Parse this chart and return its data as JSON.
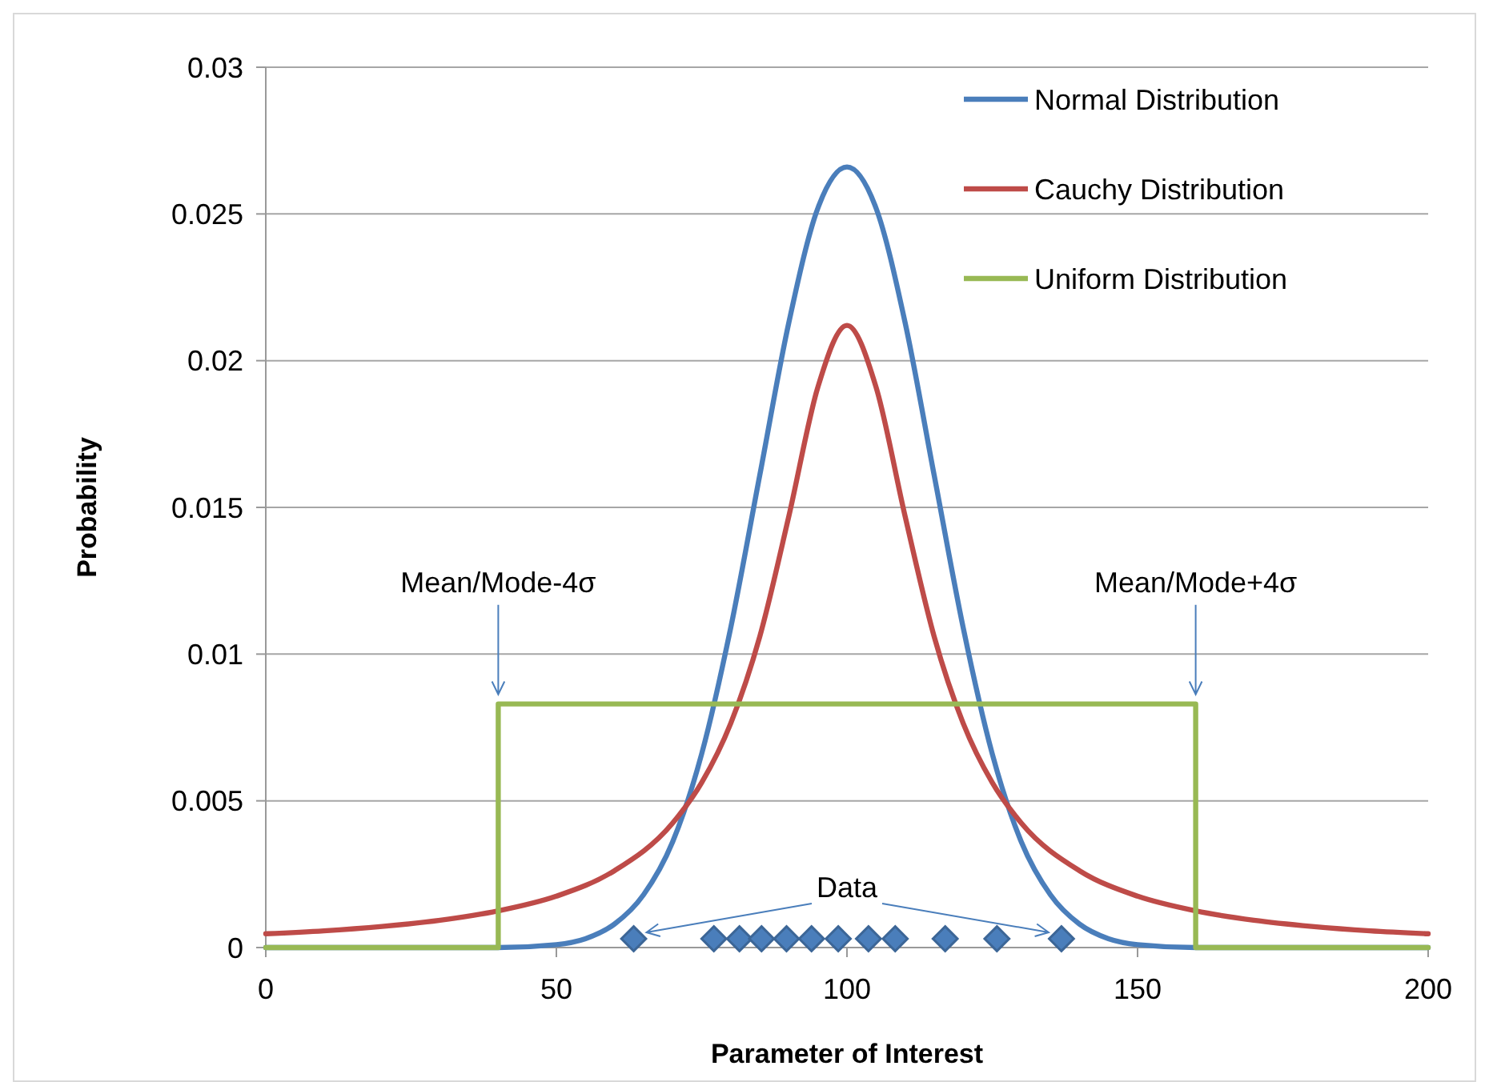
{
  "chart_data": {
    "type": "line",
    "xlabel": "Parameter of Interest",
    "ylabel": "Probability",
    "xlim": [
      0,
      200
    ],
    "xticks": [
      0,
      50,
      100,
      150,
      200
    ],
    "ylim": [
      0,
      0.03
    ],
    "yticks": [
      0,
      0.005,
      0.01,
      0.015,
      0.02,
      0.025,
      0.03
    ],
    "grid": "y",
    "legend": "top right",
    "line_style": "solid",
    "series": [
      {
        "name": "Normal Distribution",
        "color": "#4a7ebb",
        "x": [
          0,
          40,
          50,
          55,
          60,
          65,
          70,
          75,
          80,
          85,
          90,
          95,
          100,
          105,
          110,
          115,
          120,
          125,
          130,
          135,
          140,
          145,
          150,
          160,
          200
        ],
        "values": [
          0,
          0,
          0.0001,
          0.0003,
          0.0008,
          0.0018,
          0.0036,
          0.0066,
          0.0109,
          0.0161,
          0.0213,
          0.0252,
          0.0266,
          0.0252,
          0.0213,
          0.0161,
          0.0109,
          0.0066,
          0.0036,
          0.0018,
          0.0008,
          0.0003,
          0.0001,
          0,
          0
        ]
      },
      {
        "name": "Cauchy Distribution",
        "color": "#be4b48",
        "x": [
          0,
          10,
          20,
          30,
          40,
          50,
          60,
          70,
          75,
          80,
          85,
          90,
          95,
          100,
          105,
          110,
          115,
          120,
          125,
          130,
          140,
          150,
          160,
          170,
          180,
          190,
          200
        ],
        "values": [
          0.00047,
          0.00057,
          0.00072,
          0.00093,
          0.00125,
          0.00175,
          0.00262,
          0.00424,
          0.00562,
          0.00764,
          0.0106,
          0.0147,
          0.0191,
          0.0212,
          0.0191,
          0.0147,
          0.0106,
          0.00764,
          0.00562,
          0.00424,
          0.00262,
          0.00175,
          0.00125,
          0.00093,
          0.00072,
          0.00057,
          0.00047
        ]
      },
      {
        "name": "Uniform Distribution",
        "color": "#98b954",
        "x": [
          0,
          40,
          40,
          160,
          160,
          200
        ],
        "values": [
          0,
          0,
          0.0083,
          0.0083,
          0,
          0
        ]
      },
      {
        "type": "scatter",
        "marker": "diamond",
        "color": "#4a7ebb",
        "x": [
          63.3,
          77.1,
          81.5,
          85.3,
          89.6,
          93.9,
          98.5,
          103.7,
          108.3,
          116.9,
          125.8,
          136.9
        ],
        "values": [
          0.0003,
          0.0003,
          0.0003,
          0.0003,
          0.0003,
          0.0003,
          0.0003,
          0.0003,
          0.0003,
          0.0003,
          0.0003,
          0.0003
        ]
      }
    ],
    "annotations": [
      {
        "text": "Mean/Mode-4σ",
        "x": 40,
        "y": 0.0083
      },
      {
        "text": "Mean/Mode+4σ",
        "x": 160,
        "y": 0.0083
      },
      {
        "text": "Data",
        "x": 100,
        "y": 0.0003
      }
    ]
  }
}
